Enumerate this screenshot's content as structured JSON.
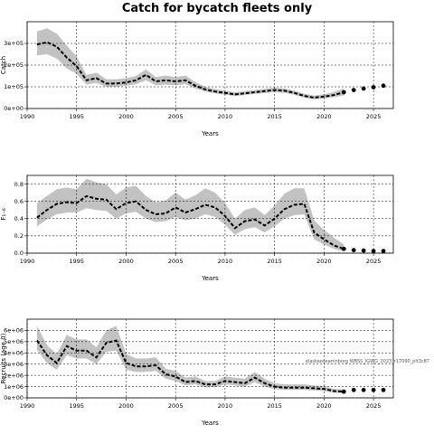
{
  "title": "Catch for bycatch fleets only",
  "chart_data": [
    {
      "type": "line",
      "xlabel": "Years",
      "ylabel": "Catch",
      "ylim": [
        0,
        400000
      ],
      "xlim": [
        1990,
        2027
      ],
      "x_ticks": [
        1990,
        1995,
        2000,
        2005,
        2010,
        2015,
        2020,
        2025
      ],
      "y_ticks": [
        0,
        100000,
        200000,
        300000
      ],
      "y_tick_labels": [
        "0e+00",
        "1e+05",
        "2e+05",
        "3e+05"
      ],
      "grid": true,
      "series": [
        {
          "role": "median",
          "x": [
            1991,
            1992,
            1993,
            1994,
            1995,
            1996,
            1997,
            1998,
            1999,
            2000,
            2001,
            2002,
            2003,
            2004,
            2005,
            2006,
            2007,
            2008,
            2009,
            2010,
            2011,
            2012,
            2013,
            2014,
            2015,
            2016,
            2017,
            2018,
            2019,
            2020,
            2021,
            2022
          ],
          "values": [
            295000,
            305000,
            285000,
            235000,
            195000,
            130000,
            140000,
            115000,
            115000,
            120000,
            130000,
            155000,
            125000,
            130000,
            125000,
            130000,
            105000,
            88000,
            78000,
            72000,
            65000,
            70000,
            75000,
            80000,
            85000,
            82000,
            72000,
            58000,
            50000,
            55000,
            62000,
            75000
          ],
          "lower": [
            245000,
            250000,
            230000,
            185000,
            160000,
            110000,
            118000,
            100000,
            100000,
            105000,
            112000,
            130000,
            107000,
            110000,
            107000,
            112000,
            92000,
            78000,
            69000,
            63000,
            57000,
            62000,
            67000,
            71000,
            75000,
            72000,
            63000,
            50000,
            43000,
            47000,
            52000,
            60000
          ],
          "upper": [
            355000,
            370000,
            345000,
            290000,
            240000,
            155000,
            165000,
            135000,
            135000,
            140000,
            150000,
            180000,
            145000,
            152000,
            145000,
            152000,
            122000,
            100000,
            90000,
            83000,
            75000,
            80000,
            85000,
            91000,
            97000,
            93000,
            83000,
            68000,
            60000,
            66000,
            76000,
            92000
          ]
        },
        {
          "role": "projection",
          "x": [
            2022,
            2023,
            2024,
            2025,
            2026
          ],
          "values": [
            75000,
            85000,
            92000,
            98000,
            105000
          ]
        }
      ]
    },
    {
      "type": "line",
      "xlabel": "Years",
      "ylabel": "F₁₋₆",
      "ylim": [
        0,
        0.9
      ],
      "xlim": [
        1990,
        2027
      ],
      "x_ticks": [
        1990,
        1995,
        2000,
        2005,
        2010,
        2015,
        2020,
        2025
      ],
      "y_ticks": [
        0.0,
        0.2,
        0.4,
        0.6,
        0.8
      ],
      "y_tick_labels": [
        "0.0",
        "0.2",
        "0.4",
        "0.6",
        "0.8"
      ],
      "grid": true,
      "series": [
        {
          "role": "median",
          "x": [
            1991,
            1992,
            1993,
            1994,
            1995,
            1996,
            1997,
            1998,
            1999,
            2000,
            2001,
            2002,
            2003,
            2004,
            2005,
            2006,
            2007,
            2008,
            2009,
            2010,
            2011,
            2012,
            2013,
            2014,
            2015,
            2016,
            2017,
            2018,
            2019,
            2020,
            2021,
            2022
          ],
          "values": [
            0.41,
            0.5,
            0.57,
            0.59,
            0.58,
            0.66,
            0.63,
            0.62,
            0.51,
            0.58,
            0.6,
            0.5,
            0.45,
            0.46,
            0.53,
            0.47,
            0.51,
            0.56,
            0.53,
            0.43,
            0.29,
            0.37,
            0.39,
            0.32,
            0.4,
            0.51,
            0.56,
            0.57,
            0.24,
            0.16,
            0.09,
            0.05
          ],
          "lower": [
            0.31,
            0.39,
            0.45,
            0.47,
            0.47,
            0.52,
            0.5,
            0.49,
            0.4,
            0.46,
            0.48,
            0.4,
            0.36,
            0.37,
            0.42,
            0.38,
            0.4,
            0.45,
            0.42,
            0.33,
            0.21,
            0.28,
            0.3,
            0.24,
            0.31,
            0.4,
            0.44,
            0.45,
            0.16,
            0.1,
            0.05,
            0.02
          ],
          "upper": [
            0.58,
            0.66,
            0.74,
            0.76,
            0.74,
            0.86,
            0.82,
            0.8,
            0.68,
            0.76,
            0.78,
            0.66,
            0.59,
            0.61,
            0.7,
            0.62,
            0.67,
            0.75,
            0.7,
            0.58,
            0.4,
            0.5,
            0.53,
            0.44,
            0.55,
            0.69,
            0.75,
            0.75,
            0.38,
            0.27,
            0.18,
            0.1
          ]
        },
        {
          "role": "projection",
          "x": [
            2022,
            2023,
            2024,
            2025,
            2026
          ],
          "values": [
            0.05,
            0.035,
            0.03,
            0.025,
            0.025
          ]
        }
      ]
    },
    {
      "type": "line",
      "xlabel": "Years",
      "ylabel": "Recruits (age 0)",
      "ylim": [
        0,
        7000000
      ],
      "xlim": [
        1990,
        2027
      ],
      "x_ticks": [
        1990,
        1995,
        2000,
        2005,
        2010,
        2015,
        2020,
        2025
      ],
      "y_ticks": [
        0,
        1000000,
        2000000,
        3000000,
        4000000,
        5000000,
        6000000
      ],
      "y_tick_labels": [
        "0e+00",
        "1e+06",
        "2e+06",
        "3e+06",
        "4e+06",
        "5e+06",
        "6e+06"
      ],
      "grid": true,
      "series": [
        {
          "role": "median",
          "x": [
            1991,
            1992,
            1993,
            1994,
            1995,
            1996,
            1997,
            1998,
            1999,
            2000,
            2001,
            2002,
            2003,
            2004,
            2005,
            2006,
            2007,
            2008,
            2009,
            2010,
            2011,
            2012,
            2013,
            2014,
            2015,
            2016,
            2017,
            2018,
            2019,
            2020,
            2021,
            2022
          ],
          "values": [
            5100000,
            3800000,
            3100000,
            4600000,
            4200000,
            4200000,
            3600000,
            4900000,
            5100000,
            3100000,
            2800000,
            2800000,
            2900000,
            2100000,
            1900000,
            1400000,
            1500000,
            1200000,
            1200000,
            1500000,
            1400000,
            1300000,
            1800000,
            1300000,
            1000000,
            900000,
            900000,
            900000,
            850000,
            800000,
            600000,
            550000
          ],
          "lower": [
            4300000,
            3100000,
            2500000,
            3800000,
            3500000,
            3500000,
            3000000,
            4100000,
            4200000,
            2500000,
            2300000,
            2300000,
            2400000,
            1700000,
            1500000,
            1100000,
            1200000,
            950000,
            950000,
            1200000,
            1100000,
            1000000,
            1400000,
            1000000,
            780000,
            700000,
            700000,
            700000,
            650000,
            600000,
            440000,
            400000
          ],
          "upper": [
            6400000,
            4700000,
            3900000,
            5600000,
            5200000,
            5200000,
            4500000,
            6000000,
            6400000,
            3900000,
            3500000,
            3500000,
            3600000,
            2600000,
            2400000,
            1800000,
            1900000,
            1500000,
            1500000,
            1900000,
            1800000,
            1700000,
            2300000,
            1700000,
            1300000,
            1200000,
            1200000,
            1200000,
            1100000,
            1050000,
            800000,
            750000
          ]
        },
        {
          "role": "projection",
          "x": [
            2022,
            2023,
            2024,
            2025,
            2026
          ],
          "values": [
            550000,
            700000,
            700000,
            700000,
            700000
          ]
        }
      ]
    }
  ],
  "note": "elaskaeseamnborg WBSS_IGWG_2023_r17090_plt3c87",
  "colors": {
    "band": "#c2c2c2",
    "line": "#000000",
    "grid": "#000000",
    "axis": "#000000"
  }
}
